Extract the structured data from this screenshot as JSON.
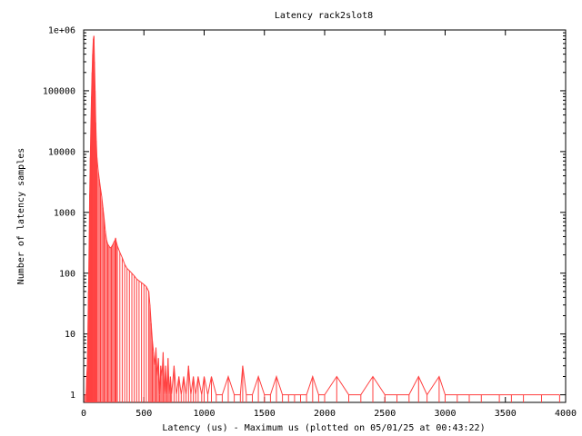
{
  "chart_data": {
    "type": "line",
    "title": "Latency rack2slot8",
    "xlabel": "Latency (us) - Maximum  us (plotted on 05/01/25 at 00:43:22)",
    "ylabel": "Number of latency samples",
    "xlim": [
      0,
      4000
    ],
    "ylim": [
      0.75,
      1000000
    ],
    "yscale": "log",
    "grid": false,
    "legend": "none",
    "xticks": [
      0,
      500,
      1000,
      1500,
      2000,
      2500,
      3000,
      3500,
      4000
    ],
    "xtick_labels": [
      "0",
      "500",
      "1000",
      "1500",
      "2000",
      "2500",
      "3000",
      "3500",
      "4000"
    ],
    "yticks": [
      1,
      10,
      100,
      1000,
      10000,
      100000,
      1000000
    ],
    "ytick_labels": [
      "1",
      "10",
      "100",
      "1000",
      "10000",
      "100000",
      "1e+06"
    ],
    "series": [
      {
        "color": "#ff4040",
        "points": [
          [
            10,
            1
          ],
          [
            20,
            1
          ],
          [
            25,
            2
          ],
          [
            30,
            3
          ],
          [
            35,
            10
          ],
          [
            40,
            50
          ],
          [
            45,
            300
          ],
          [
            50,
            2000
          ],
          [
            55,
            8000
          ],
          [
            60,
            30000
          ],
          [
            65,
            80000
          ],
          [
            70,
            200000
          ],
          [
            75,
            400000
          ],
          [
            80,
            700000
          ],
          [
            85,
            800000
          ],
          [
            90,
            300000
          ],
          [
            95,
            100000
          ],
          [
            100,
            30000
          ],
          [
            105,
            15000
          ],
          [
            110,
            8000
          ],
          [
            120,
            5000
          ],
          [
            130,
            3500
          ],
          [
            140,
            2500
          ],
          [
            150,
            1800
          ],
          [
            160,
            1200
          ],
          [
            170,
            800
          ],
          [
            180,
            500
          ],
          [
            190,
            350
          ],
          [
            200,
            300
          ],
          [
            210,
            280
          ],
          [
            220,
            260
          ],
          [
            230,
            270
          ],
          [
            240,
            290
          ],
          [
            250,
            320
          ],
          [
            260,
            350
          ],
          [
            265,
            380
          ],
          [
            270,
            330
          ],
          [
            280,
            280
          ],
          [
            300,
            220
          ],
          [
            320,
            180
          ],
          [
            340,
            140
          ],
          [
            360,
            120
          ],
          [
            380,
            110
          ],
          [
            400,
            100
          ],
          [
            420,
            90
          ],
          [
            440,
            80
          ],
          [
            460,
            75
          ],
          [
            480,
            70
          ],
          [
            500,
            65
          ],
          [
            520,
            60
          ],
          [
            540,
            50
          ],
          [
            550,
            30
          ],
          [
            560,
            15
          ],
          [
            570,
            8
          ],
          [
            580,
            5
          ],
          [
            590,
            3
          ],
          [
            600,
            6
          ],
          [
            610,
            2
          ],
          [
            620,
            4
          ],
          [
            630,
            1
          ],
          [
            640,
            3
          ],
          [
            650,
            2
          ],
          [
            660,
            5
          ],
          [
            670,
            1
          ],
          [
            680,
            3
          ],
          [
            690,
            1
          ],
          [
            700,
            4
          ],
          [
            710,
            1
          ],
          [
            720,
            2
          ],
          [
            730,
            1
          ],
          [
            750,
            3
          ],
          [
            770,
            1
          ],
          [
            790,
            2
          ],
          [
            810,
            1
          ],
          [
            830,
            2
          ],
          [
            850,
            1
          ],
          [
            870,
            3
          ],
          [
            890,
            1
          ],
          [
            910,
            2
          ],
          [
            930,
            1
          ],
          [
            950,
            2
          ],
          [
            980,
            1
          ],
          [
            1000,
            2
          ],
          [
            1030,
            1
          ],
          [
            1060,
            2
          ],
          [
            1100,
            1
          ],
          [
            1150,
            1
          ],
          [
            1200,
            2
          ],
          [
            1250,
            1
          ],
          [
            1300,
            1
          ],
          [
            1320,
            3
          ],
          [
            1350,
            1
          ],
          [
            1400,
            1
          ],
          [
            1450,
            2
          ],
          [
            1500,
            1
          ],
          [
            1550,
            1
          ],
          [
            1600,
            2
          ],
          [
            1650,
            1
          ],
          [
            1700,
            1
          ],
          [
            1750,
            1
          ],
          [
            1800,
            1
          ],
          [
            1850,
            1
          ],
          [
            1900,
            2
          ],
          [
            1950,
            1
          ],
          [
            2000,
            1
          ],
          [
            2100,
            2
          ],
          [
            2200,
            1
          ],
          [
            2300,
            1
          ],
          [
            2400,
            2
          ],
          [
            2500,
            1
          ],
          [
            2600,
            1
          ],
          [
            2700,
            1
          ],
          [
            2780,
            2
          ],
          [
            2850,
            1
          ],
          [
            2950,
            2
          ],
          [
            3000,
            1
          ],
          [
            3100,
            1
          ],
          [
            3200,
            1
          ],
          [
            3300,
            1
          ],
          [
            3450,
            1
          ],
          [
            3550,
            1
          ],
          [
            3650,
            1
          ],
          [
            3800,
            1
          ],
          [
            3950,
            1
          ]
        ]
      }
    ]
  }
}
